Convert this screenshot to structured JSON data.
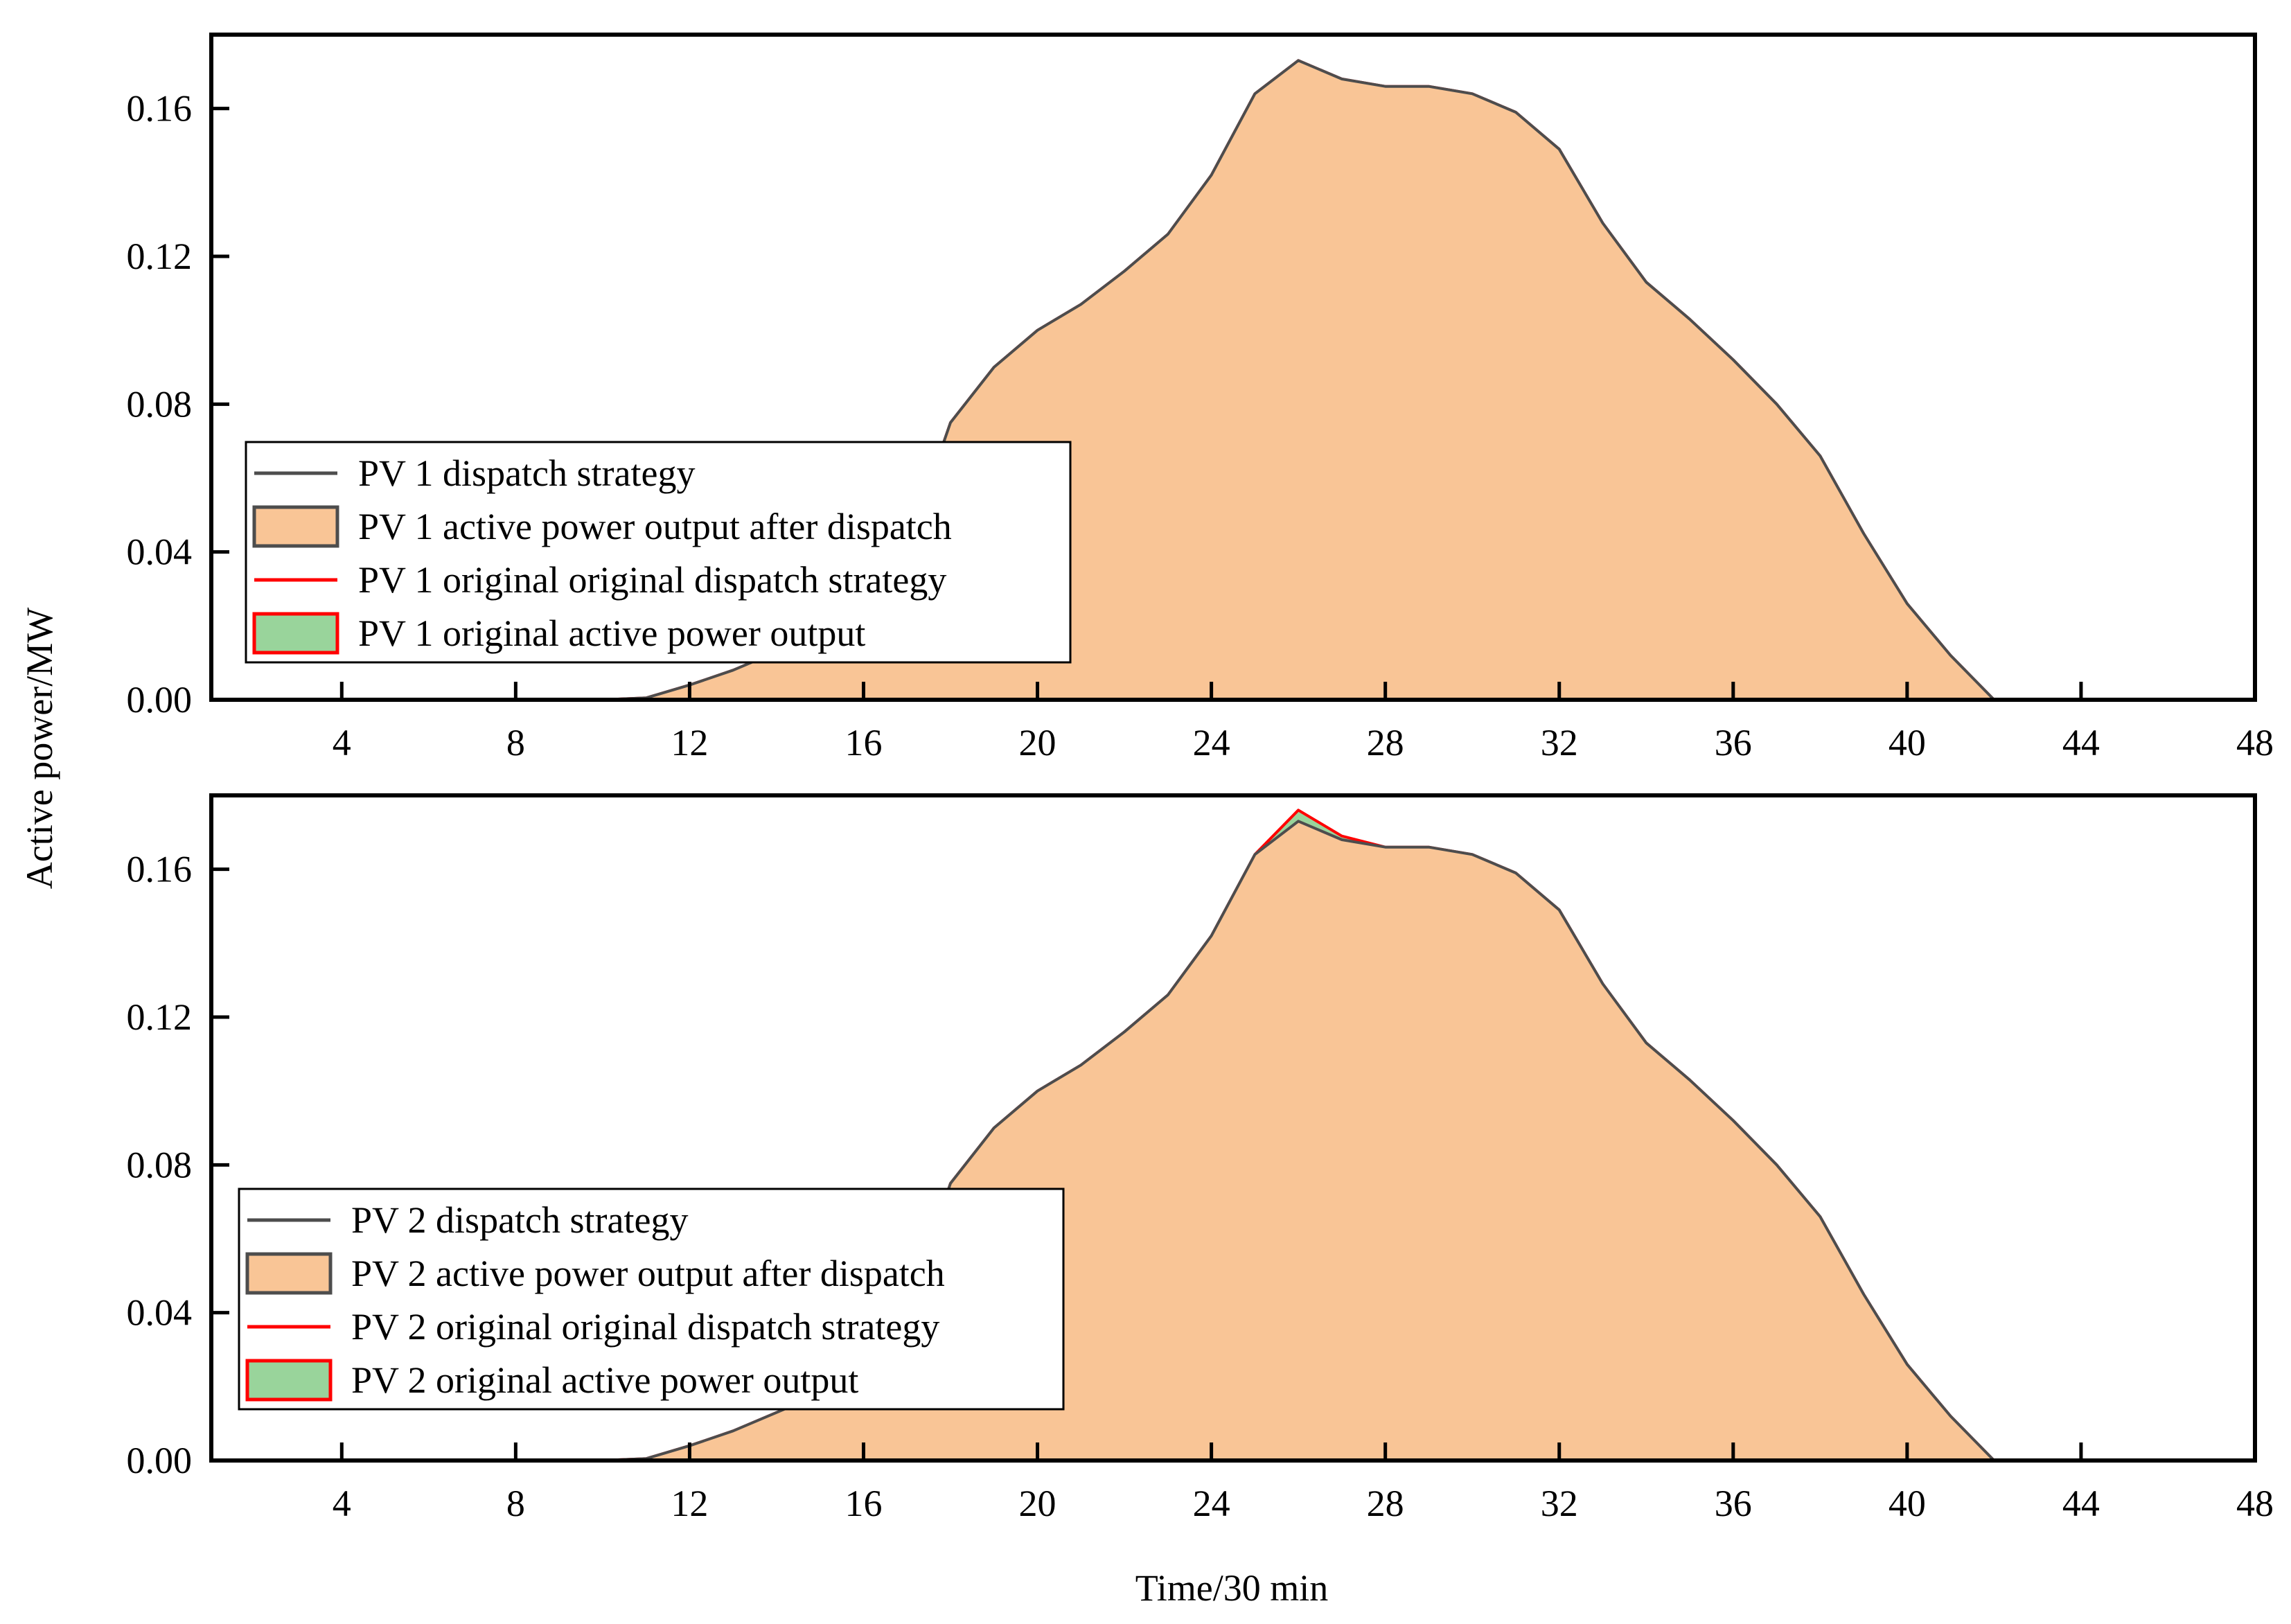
{
  "figure": {
    "ylabel": "Active power/MW",
    "xlabel": "Time/30 min"
  },
  "chart_data": [
    {
      "type": "area",
      "title": "",
      "xlabel": "Time/30 min",
      "ylabel": "Active power/MW",
      "xlim": [
        1,
        48
      ],
      "ylim": [
        0,
        0.18
      ],
      "xticks": [
        4,
        8,
        12,
        16,
        20,
        24,
        28,
        32,
        36,
        40,
        44,
        48
      ],
      "yticks": [
        0.0,
        0.04,
        0.08,
        0.12,
        0.16
      ],
      "xtick_labels": [
        "4",
        "8",
        "12",
        "16",
        "20",
        "24",
        "28",
        "32",
        "36",
        "40",
        "44",
        "48"
      ],
      "ytick_labels": [
        "0.00",
        "0.04",
        "0.08",
        "0.12",
        "0.16"
      ],
      "grid": false,
      "legend_position": "center-left",
      "x": [
        1,
        2,
        3,
        4,
        5,
        6,
        7,
        8,
        9,
        10,
        11,
        12,
        13,
        14,
        15,
        16,
        17,
        18,
        19,
        20,
        21,
        22,
        23,
        24,
        25,
        26,
        27,
        28,
        29,
        30,
        31,
        32,
        33,
        34,
        35,
        36,
        37,
        38,
        39,
        40,
        41,
        42,
        43,
        44,
        45,
        46,
        47,
        48
      ],
      "series": [
        {
          "name": "PV 1 dispatch strategy",
          "kind": "line",
          "color": "#4d4d4d",
          "values": [
            0,
            0,
            0,
            0,
            0,
            0,
            0,
            0,
            0,
            0,
            0.0005,
            0.004,
            0.008,
            0.013,
            0.018,
            0.025,
            0.041,
            0.075,
            0.09,
            0.1,
            0.107,
            0.116,
            0.126,
            0.142,
            0.164,
            0.173,
            0.168,
            0.166,
            0.166,
            0.164,
            0.159,
            0.149,
            0.129,
            0.113,
            0.103,
            0.092,
            0.08,
            0.066,
            0.045,
            0.026,
            0.012,
            0,
            0,
            0,
            0,
            0,
            0,
            0
          ]
        },
        {
          "name": "PV 1 active power output after dispatch",
          "kind": "area",
          "color": "#f9c596",
          "edge": "#4d4d4d",
          "values": [
            0,
            0,
            0,
            0,
            0,
            0,
            0,
            0,
            0,
            0,
            0.0005,
            0.004,
            0.008,
            0.013,
            0.018,
            0.025,
            0.041,
            0.075,
            0.09,
            0.1,
            0.107,
            0.116,
            0.126,
            0.142,
            0.164,
            0.173,
            0.168,
            0.166,
            0.166,
            0.164,
            0.159,
            0.149,
            0.129,
            0.113,
            0.103,
            0.092,
            0.08,
            0.066,
            0.045,
            0.026,
            0.012,
            0,
            0,
            0,
            0,
            0,
            0,
            0
          ]
        },
        {
          "name": "PV 1 original original dispatch strategy",
          "kind": "line",
          "color": "#ff0000",
          "values": [
            0,
            0,
            0,
            0,
            0,
            0,
            0,
            0,
            0,
            0,
            0.0005,
            0.004,
            0.008,
            0.013,
            0.018,
            0.025,
            0.041,
            0.075,
            0.09,
            0.1,
            0.107,
            0.116,
            0.126,
            0.142,
            0.164,
            0.173,
            0.168,
            0.166,
            0.166,
            0.164,
            0.159,
            0.149,
            0.129,
            0.113,
            0.103,
            0.092,
            0.08,
            0.066,
            0.045,
            0.026,
            0.012,
            0,
            0,
            0,
            0,
            0,
            0,
            0
          ]
        },
        {
          "name": "PV 1 original active power output",
          "kind": "area",
          "color": "#99d49b",
          "edge": "#ff0000",
          "values": [
            0,
            0,
            0,
            0,
            0,
            0,
            0,
            0,
            0,
            0,
            0.0005,
            0.004,
            0.008,
            0.013,
            0.018,
            0.025,
            0.041,
            0.075,
            0.09,
            0.1,
            0.107,
            0.116,
            0.126,
            0.142,
            0.164,
            0.173,
            0.168,
            0.166,
            0.166,
            0.164,
            0.159,
            0.149,
            0.129,
            0.113,
            0.103,
            0.092,
            0.08,
            0.066,
            0.045,
            0.026,
            0.012,
            0,
            0,
            0,
            0,
            0,
            0,
            0
          ]
        }
      ]
    },
    {
      "type": "area",
      "title": "",
      "xlabel": "Time/30 min",
      "ylabel": "Active power/MW",
      "xlim": [
        1,
        48
      ],
      "ylim": [
        0,
        0.18
      ],
      "xticks": [
        4,
        8,
        12,
        16,
        20,
        24,
        28,
        32,
        36,
        40,
        44,
        48
      ],
      "yticks": [
        0.0,
        0.04,
        0.08,
        0.12,
        0.16
      ],
      "xtick_labels": [
        "4",
        "8",
        "12",
        "16",
        "20",
        "24",
        "28",
        "32",
        "36",
        "40",
        "44",
        "48"
      ],
      "ytick_labels": [
        "0.00",
        "0.04",
        "0.08",
        "0.12",
        "0.16"
      ],
      "grid": false,
      "legend_position": "center-left",
      "x": [
        1,
        2,
        3,
        4,
        5,
        6,
        7,
        8,
        9,
        10,
        11,
        12,
        13,
        14,
        15,
        16,
        17,
        18,
        19,
        20,
        21,
        22,
        23,
        24,
        25,
        26,
        27,
        28,
        29,
        30,
        31,
        32,
        33,
        34,
        35,
        36,
        37,
        38,
        39,
        40,
        41,
        42,
        43,
        44,
        45,
        46,
        47,
        48
      ],
      "series": [
        {
          "name": "PV 2 dispatch strategy",
          "kind": "line",
          "color": "#4d4d4d",
          "values": [
            0,
            0,
            0,
            0,
            0,
            0,
            0,
            0,
            0,
            0,
            0.0005,
            0.004,
            0.008,
            0.013,
            0.018,
            0.025,
            0.041,
            0.075,
            0.09,
            0.1,
            0.107,
            0.116,
            0.126,
            0.142,
            0.164,
            0.173,
            0.168,
            0.166,
            0.166,
            0.164,
            0.159,
            0.149,
            0.129,
            0.113,
            0.103,
            0.092,
            0.08,
            0.066,
            0.045,
            0.026,
            0.012,
            0,
            0,
            0,
            0,
            0,
            0,
            0
          ]
        },
        {
          "name": "PV 2 active power output after dispatch",
          "kind": "area",
          "color": "#f9c596",
          "edge": "#4d4d4d",
          "values": [
            0,
            0,
            0,
            0,
            0,
            0,
            0,
            0,
            0,
            0,
            0.0005,
            0.004,
            0.008,
            0.013,
            0.018,
            0.025,
            0.041,
            0.075,
            0.09,
            0.1,
            0.107,
            0.116,
            0.126,
            0.142,
            0.164,
            0.173,
            0.168,
            0.166,
            0.166,
            0.164,
            0.159,
            0.149,
            0.129,
            0.113,
            0.103,
            0.092,
            0.08,
            0.066,
            0.045,
            0.026,
            0.012,
            0,
            0,
            0,
            0,
            0,
            0,
            0
          ]
        },
        {
          "name": "PV 2 original original dispatch strategy",
          "kind": "line",
          "color": "#ff0000",
          "values": [
            0,
            0,
            0,
            0,
            0,
            0,
            0,
            0,
            0,
            0,
            0.0005,
            0.004,
            0.008,
            0.013,
            0.018,
            0.025,
            0.041,
            0.075,
            0.09,
            0.1,
            0.107,
            0.116,
            0.126,
            0.142,
            0.164,
            0.176,
            0.169,
            0.166,
            0.166,
            0.164,
            0.159,
            0.149,
            0.129,
            0.113,
            0.103,
            0.092,
            0.08,
            0.066,
            0.045,
            0.026,
            0.012,
            0,
            0,
            0,
            0,
            0,
            0,
            0
          ]
        },
        {
          "name": "PV 2 original active power output",
          "kind": "area",
          "color": "#99d49b",
          "edge": "#ff0000",
          "values": [
            0,
            0,
            0,
            0,
            0,
            0,
            0,
            0,
            0,
            0,
            0.0005,
            0.004,
            0.008,
            0.013,
            0.018,
            0.025,
            0.041,
            0.075,
            0.09,
            0.1,
            0.107,
            0.116,
            0.126,
            0.142,
            0.164,
            0.176,
            0.169,
            0.166,
            0.166,
            0.164,
            0.159,
            0.149,
            0.129,
            0.113,
            0.103,
            0.092,
            0.08,
            0.066,
            0.045,
            0.026,
            0.012,
            0,
            0,
            0,
            0,
            0,
            0,
            0
          ]
        }
      ]
    }
  ]
}
